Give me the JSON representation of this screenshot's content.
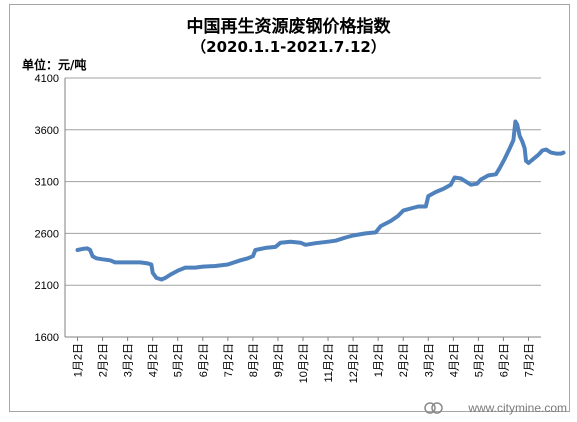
{
  "chart_data": {
    "type": "line",
    "title": "中国再生资源废钢价格指数",
    "subtitle": "（2020.1.1-2021.7.12）",
    "unit_label": "单位：元/吨",
    "ylim": [
      1600,
      4100
    ],
    "yticks": [
      1600,
      2100,
      2600,
      3100,
      3600,
      4100
    ],
    "grid": true,
    "legend": "none",
    "x_labels": [
      "1月2日",
      "2月2日",
      "3月2日",
      "4月2日",
      "5月2日",
      "6月2日",
      "7月2日",
      "8月2日",
      "9月2日",
      "10月2日",
      "11月2日",
      "12月2日",
      "1月2日",
      "2月2日",
      "3月2日",
      "4月2日",
      "5月2日",
      "6月2日",
      "7月2日"
    ],
    "series": [
      {
        "color": "#4f81bd",
        "points": [
          [
            0,
            2440
          ],
          [
            0.2,
            2450
          ],
          [
            0.4,
            2455
          ],
          [
            0.5,
            2440
          ],
          [
            0.6,
            2380
          ],
          [
            0.75,
            2360
          ],
          [
            1.0,
            2350
          ],
          [
            1.3,
            2340
          ],
          [
            1.5,
            2320
          ],
          [
            2.0,
            2320
          ],
          [
            2.5,
            2320
          ],
          [
            2.8,
            2310
          ],
          [
            2.95,
            2300
          ],
          [
            3.0,
            2220
          ],
          [
            3.15,
            2170
          ],
          [
            3.35,
            2155
          ],
          [
            3.5,
            2170
          ],
          [
            3.7,
            2200
          ],
          [
            4.0,
            2240
          ],
          [
            4.3,
            2270
          ],
          [
            4.7,
            2270
          ],
          [
            5.0,
            2280
          ],
          [
            5.5,
            2285
          ],
          [
            6.0,
            2300
          ],
          [
            6.5,
            2340
          ],
          [
            6.8,
            2360
          ],
          [
            7.0,
            2380
          ],
          [
            7.1,
            2440
          ],
          [
            7.5,
            2460
          ],
          [
            7.9,
            2470
          ],
          [
            8.1,
            2510
          ],
          [
            8.5,
            2520
          ],
          [
            8.9,
            2510
          ],
          [
            9.1,
            2490
          ],
          [
            9.5,
            2505
          ],
          [
            10.0,
            2520
          ],
          [
            10.3,
            2530
          ],
          [
            10.7,
            2560
          ],
          [
            11.0,
            2580
          ],
          [
            11.5,
            2600
          ],
          [
            11.9,
            2610
          ],
          [
            12.1,
            2670
          ],
          [
            12.5,
            2720
          ],
          [
            12.8,
            2770
          ],
          [
            13.0,
            2820
          ],
          [
            13.3,
            2840
          ],
          [
            13.6,
            2860
          ],
          [
            13.9,
            2860
          ],
          [
            14.0,
            2960
          ],
          [
            14.3,
            3000
          ],
          [
            14.6,
            3030
          ],
          [
            14.9,
            3070
          ],
          [
            15.05,
            3140
          ],
          [
            15.3,
            3130
          ],
          [
            15.5,
            3100
          ],
          [
            15.7,
            3070
          ],
          [
            15.95,
            3080
          ],
          [
            16.1,
            3120
          ],
          [
            16.4,
            3160
          ],
          [
            16.7,
            3170
          ],
          [
            16.85,
            3230
          ],
          [
            17.05,
            3320
          ],
          [
            17.25,
            3420
          ],
          [
            17.4,
            3500
          ],
          [
            17.48,
            3680
          ],
          [
            17.55,
            3650
          ],
          [
            17.65,
            3540
          ],
          [
            17.75,
            3490
          ],
          [
            17.85,
            3420
          ],
          [
            17.9,
            3300
          ],
          [
            18.0,
            3280
          ],
          [
            18.2,
            3320
          ],
          [
            18.4,
            3360
          ],
          [
            18.55,
            3400
          ],
          [
            18.7,
            3410
          ],
          [
            18.9,
            3380
          ],
          [
            19.1,
            3370
          ],
          [
            19.3,
            3370
          ],
          [
            19.4,
            3380
          ]
        ]
      }
    ]
  },
  "watermark": "www.citymine.com"
}
